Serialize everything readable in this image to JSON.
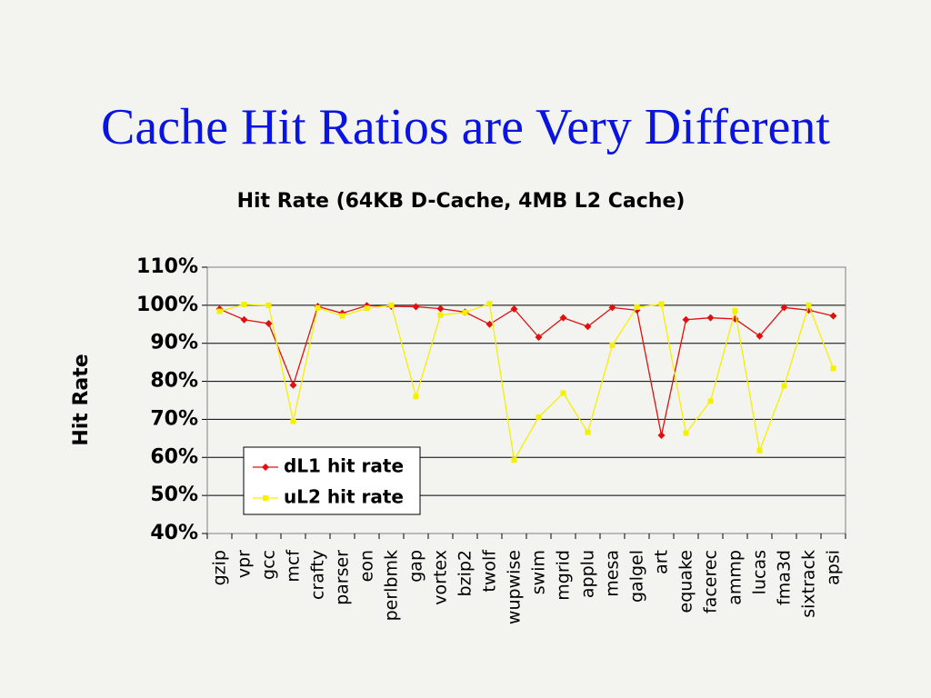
{
  "slide": {
    "title": "Cache Hit Ratios are Very Different"
  },
  "chart_data": {
    "type": "line",
    "title": "Hit Rate (64KB D-Cache, 4MB L2 Cache)",
    "xlabel": "",
    "ylabel": "Hit Rate",
    "ylim": [
      40,
      110
    ],
    "yticks": [
      "40%",
      "50%",
      "60%",
      "70%",
      "80%",
      "90%",
      "100%",
      "110%"
    ],
    "categories": [
      "gzip",
      "vpr",
      "gcc",
      "mcf",
      "crafty",
      "parser",
      "eon",
      "perlbmk",
      "gap",
      "vortex",
      "bzip2",
      "twolf",
      "wupwise",
      "swim",
      "mgrid",
      "applu",
      "mesa",
      "galgel",
      "art",
      "equake",
      "facerec",
      "ammp",
      "lucas",
      "fma3d",
      "sixtrack",
      "apsi"
    ],
    "series": [
      {
        "name": "dL1 hit rate",
        "color": "#e01010",
        "marker": "diamond",
        "values": [
          99,
          96.2,
          95.2,
          79,
          99.7,
          97.9,
          99.9,
          99.7,
          99.6,
          99.1,
          98.2,
          95,
          99,
          91.6,
          96.7,
          94.4,
          99.4,
          98.7,
          65.8,
          96.2,
          96.7,
          96.4,
          91.9,
          99.4,
          98.7,
          97.2
        ]
      },
      {
        "name": "uL2 hit rate",
        "color": "#f5f000",
        "marker": "square",
        "values": [
          98.4,
          100.2,
          100,
          69.5,
          99.3,
          97.2,
          99.2,
          100,
          76,
          97.4,
          98.1,
          100.4,
          59.3,
          70.6,
          76.9,
          66.6,
          89.5,
          99.5,
          100.3,
          66.4,
          74.8,
          98.5,
          61.8,
          78.8,
          100,
          83.4
        ]
      }
    ],
    "grid": "horizontal",
    "legend": "lower-left"
  }
}
